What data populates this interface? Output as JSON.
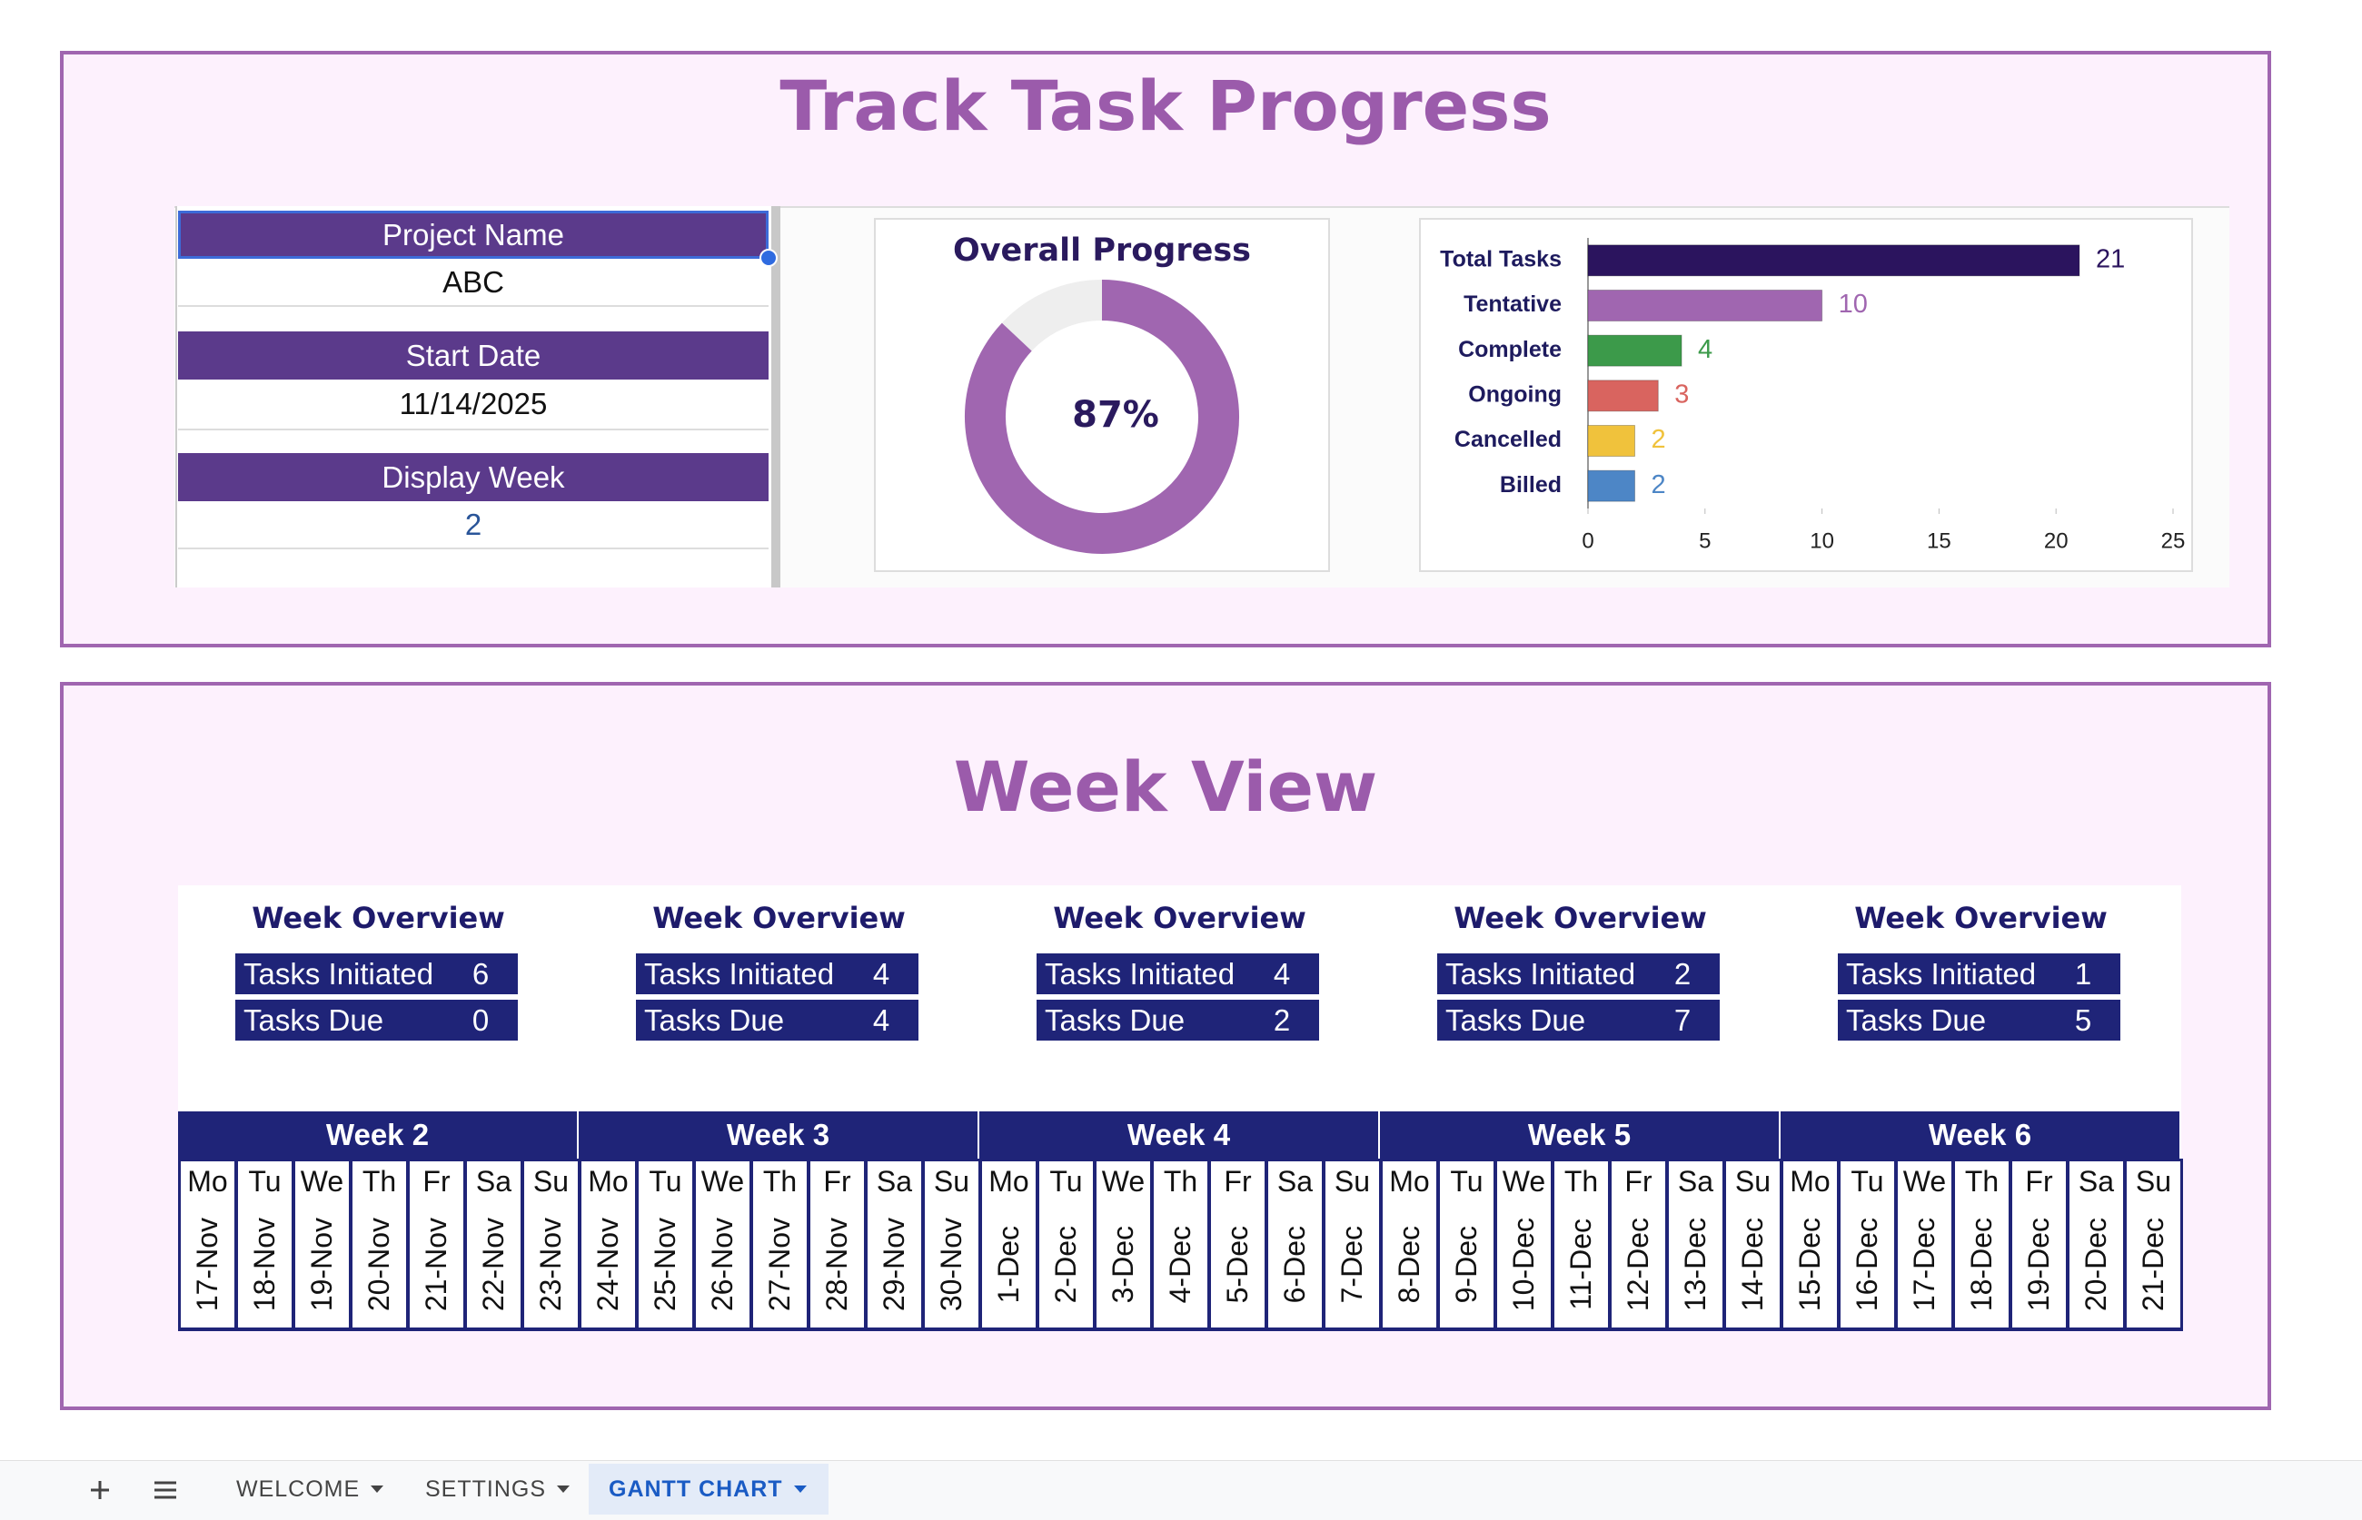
{
  "header": {
    "title": "Track Task Progress"
  },
  "project": {
    "fields": [
      {
        "label": "Project Name",
        "value": "ABC"
      },
      {
        "label": "Start Date",
        "value": "11/14/2025"
      },
      {
        "label": "Display Week",
        "value": 2
      }
    ]
  },
  "chart_data": [
    {
      "type": "donut",
      "title": "Overall Progress",
      "categories": [
        null,
        null
      ],
      "values": [
        87,
        13
      ],
      "value_labels": [
        "87%",
        null
      ],
      "colors": [
        "#a066b0",
        "#eeeeee"
      ]
    },
    {
      "type": "bar",
      "orientation": "horizontal",
      "categories": [
        "Total Tasks",
        "Tentative",
        "Complete",
        "Ongoing",
        "Cancelled",
        "Billed"
      ],
      "values": [
        21,
        10,
        4,
        3,
        2,
        2
      ],
      "colors": [
        "#2b145e",
        "#a066b0",
        "#3c9a4a",
        "#d9645f",
        "#f0c23c",
        "#4d86c6"
      ],
      "xlim": [
        0,
        25
      ],
      "xticks": [
        0,
        5,
        10,
        15,
        20,
        25
      ]
    }
  ],
  "week_view": {
    "title": "Week View",
    "day_names": [
      "Mo",
      "Tu",
      "We",
      "Th",
      "Fr",
      "Sa",
      "Su"
    ],
    "weeks": [
      {
        "name": "Week 2",
        "overview_title": "Week Overview",
        "initiated_label": "Tasks Initiated",
        "tasks_initiated": 6,
        "due_label": "Tasks Due",
        "tasks_due": 0,
        "dates": [
          "17-Nov",
          "18-Nov",
          "19-Nov",
          "20-Nov",
          "21-Nov",
          "22-Nov",
          "23-Nov"
        ]
      },
      {
        "name": "Week 3",
        "overview_title": "Week Overview",
        "initiated_label": "Tasks Initiated",
        "tasks_initiated": 4,
        "due_label": "Tasks Due",
        "tasks_due": 4,
        "dates": [
          "24-Nov",
          "25-Nov",
          "26-Nov",
          "27-Nov",
          "28-Nov",
          "29-Nov",
          "30-Nov"
        ]
      },
      {
        "name": "Week 4",
        "overview_title": "Week Overview",
        "initiated_label": "Tasks Initiated",
        "tasks_initiated": 4,
        "due_label": "Tasks Due",
        "tasks_due": 2,
        "dates": [
          "1-Dec",
          "2-Dec",
          "3-Dec",
          "4-Dec",
          "5-Dec",
          "6-Dec",
          "7-Dec"
        ]
      },
      {
        "name": "Week 5",
        "overview_title": "Week Overview",
        "initiated_label": "Tasks Initiated",
        "tasks_initiated": 2,
        "due_label": "Tasks Due",
        "tasks_due": 7,
        "dates": [
          "8-Dec",
          "9-Dec",
          "10-Dec",
          "11-Dec",
          "12-Dec",
          "13-Dec",
          "14-Dec"
        ]
      },
      {
        "name": "Week 6",
        "overview_title": "Week Overview",
        "initiated_label": "Tasks Initiated",
        "tasks_initiated": 1,
        "due_label": "Tasks Due",
        "tasks_due": 5,
        "dates": [
          "15-Dec",
          "16-Dec",
          "17-Dec",
          "18-Dec",
          "19-Dec",
          "20-Dec",
          "21-Dec"
        ]
      }
    ]
  },
  "tabs": [
    "WELCOME",
    "SETTINGS",
    "GANTT CHART"
  ]
}
